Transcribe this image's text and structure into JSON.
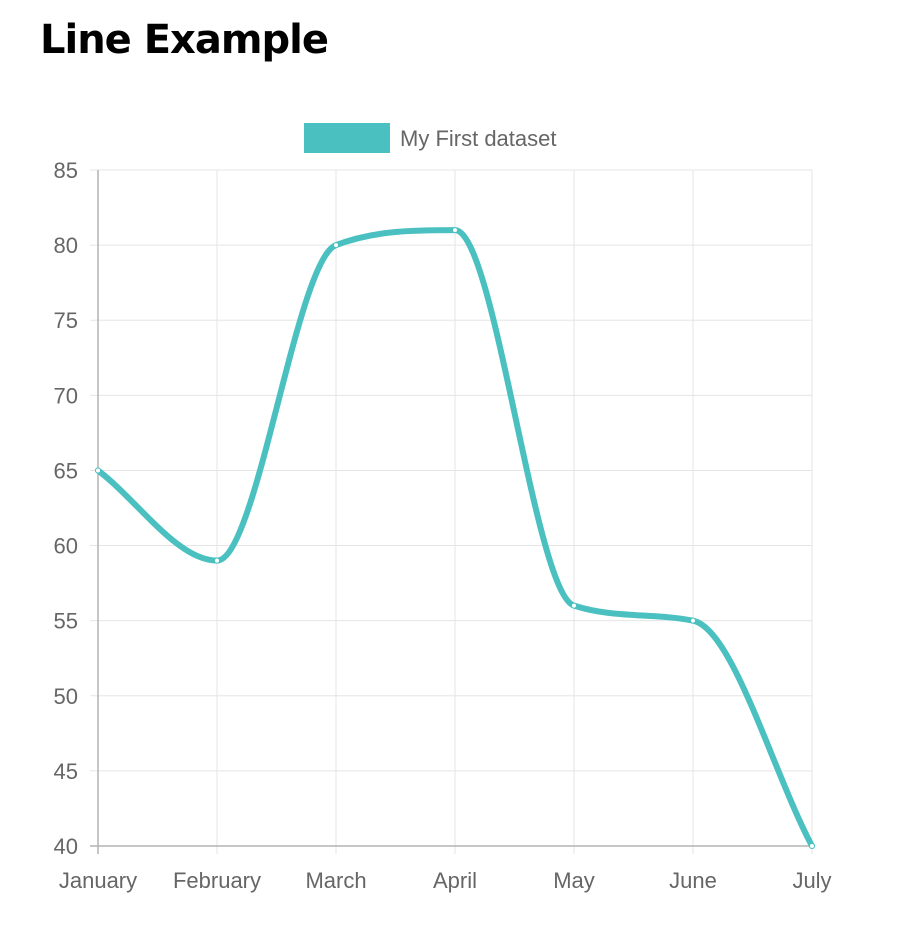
{
  "page": {
    "title": "Line Example"
  },
  "chart_data": {
    "type": "line",
    "categories": [
      "January",
      "February",
      "March",
      "April",
      "May",
      "June",
      "July"
    ],
    "series": [
      {
        "name": "My First dataset",
        "values": [
          65,
          59,
          80,
          81,
          56,
          55,
          40
        ],
        "color": "#4bc0c0"
      }
    ],
    "ylim": [
      40,
      85
    ],
    "yticks": [
      40,
      45,
      50,
      55,
      60,
      65,
      70,
      75,
      80,
      85
    ],
    "grid": true,
    "legend_position": "top",
    "colors": {
      "grid": "#e5e5e5",
      "axis": "#b3b3b3",
      "tick_text": "#666666"
    }
  }
}
